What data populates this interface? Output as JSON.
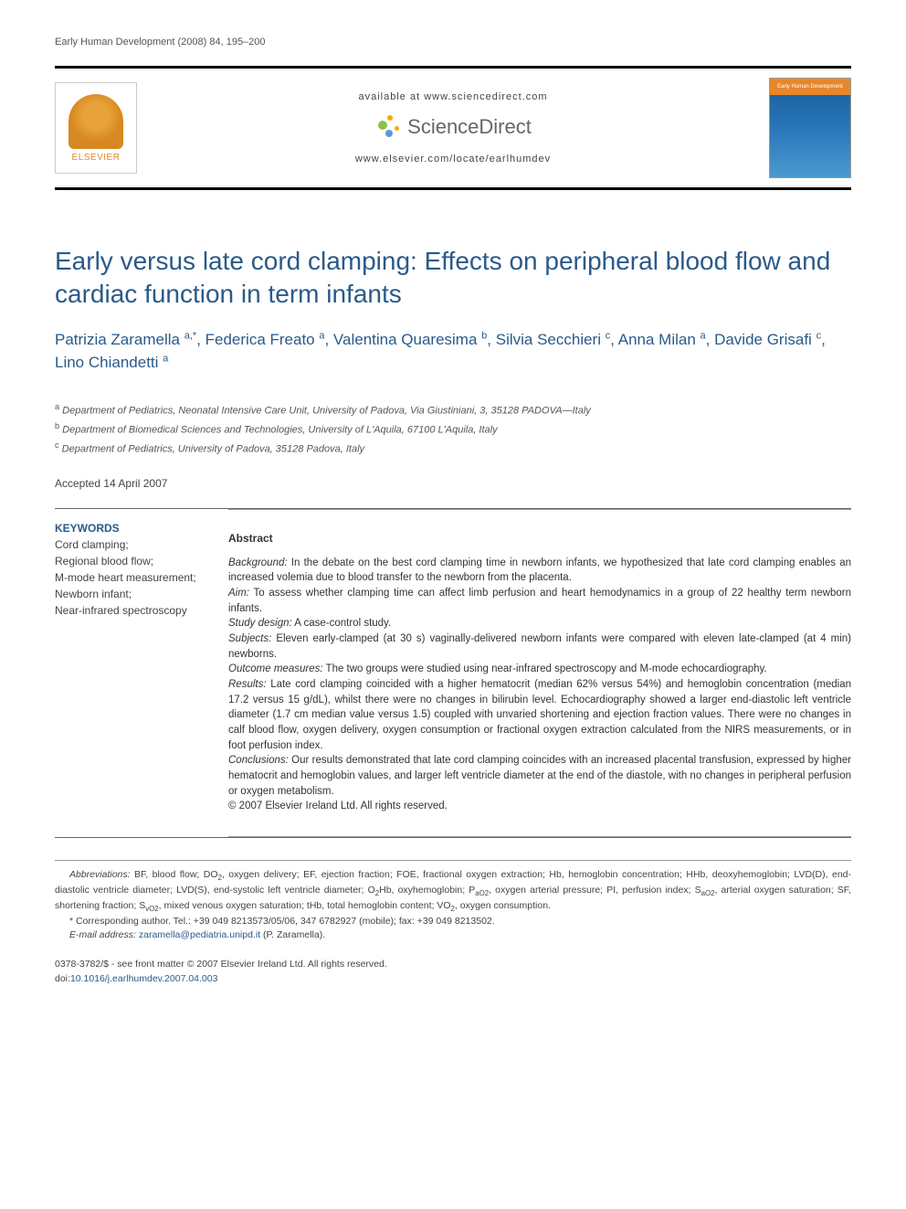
{
  "running_header": "Early Human Development (2008) 84, 195–200",
  "banner": {
    "available_at": "available at www.sciencedirect.com",
    "sciencedirect": "ScienceDirect",
    "locate": "www.elsevier.com/locate/earlhumdev",
    "elsevier_label": "ELSEVIER",
    "journal_cover_label": "Early Human Development"
  },
  "title": "Early versus late cord clamping: Effects on peripheral blood flow and cardiac function in term infants",
  "authors_html": "Patrizia Zaramella <sup>a,*</sup>, Federica Freato <sup>a</sup>, Valentina Quaresima <sup>b</sup>, Silvia Secchieri <sup>c</sup>, Anna Milan <sup>a</sup>, Davide Grisafi <sup>c</sup>, Lino Chiandetti <sup>a</sup>",
  "affiliations": {
    "a": "Department of Pediatrics, Neonatal Intensive Care Unit, University of Padova, Via Giustiniani, 3, 35128 PADOVA—Italy",
    "b": "Department of Biomedical Sciences and Technologies, University of L'Aquila, 67100 L'Aquila, Italy",
    "c": "Department of Pediatrics, University of Padova, 35128 Padova, Italy"
  },
  "accepted": "Accepted 14 April 2007",
  "keywords": {
    "heading": "KEYWORDS",
    "items": [
      "Cord clamping;",
      "Regional blood flow;",
      "M-mode heart measurement;",
      "Newborn infant;",
      "Near-infrared spectroscopy"
    ]
  },
  "abstract": {
    "heading": "Abstract",
    "background_label": "Background:",
    "background": "In the debate on the best cord clamping time in newborn infants, we hypothesized that late cord clamping enables an increased volemia due to blood transfer to the newborn from the placenta.",
    "aim_label": "Aim:",
    "aim": "To assess whether clamping time can affect limb perfusion and heart hemodynamics in a group of 22 healthy term newborn infants.",
    "design_label": "Study design:",
    "design": "A case-control study.",
    "subjects_label": "Subjects:",
    "subjects": "Eleven early-clamped (at 30 s) vaginally-delivered newborn infants were compared with eleven late-clamped (at 4 min) newborns.",
    "outcome_label": "Outcome measures:",
    "outcome": "The two groups were studied using near-infrared spectroscopy and M-mode echocardiography.",
    "results_label": "Results:",
    "results": "Late cord clamping coincided with a higher hematocrit (median 62% versus 54%) and hemoglobin concentration (median 17.2 versus 15 g/dL), whilst there were no changes in bilirubin level. Echocardiography showed a larger end-diastolic left ventricle diameter (1.7 cm median value versus 1.5) coupled with unvaried shortening and ejection fraction values. There were no changes in calf blood flow, oxygen delivery, oxygen consumption or fractional oxygen extraction calculated from the NIRS measurements, or in foot perfusion index.",
    "conclusions_label": "Conclusions:",
    "conclusions": "Our results demonstrated that late cord clamping coincides with an increased placental transfusion, expressed by higher hematocrit and hemoglobin values, and larger left ventricle diameter at the end of the diastole, with no changes in peripheral perfusion or oxygen metabolism.",
    "copyright": "© 2007 Elsevier Ireland Ltd. All rights reserved."
  },
  "footnotes": {
    "abbreviations_label": "Abbreviations:",
    "abbreviations": "BF, blood flow; DO₂, oxygen delivery; EF, ejection fraction; FOE, fractional oxygen extraction; Hb, hemoglobin concentration; HHb, deoxyhemoglobin; LVD(D), end-diastolic ventricle diameter; LVD(S), end-systolic left ventricle diameter; O₂Hb, oxyhemoglobin; PaO2, oxygen arterial pressure; PI, perfusion index; SaO2, arterial oxygen saturation; SF, shortening fraction; SvO2, mixed venous oxygen saturation; tHb, total hemoglobin content; VO₂, oxygen consumption.",
    "corresponding": "* Corresponding author. Tel.: +39 049 8213573/05/06, 347 6782927 (mobile); fax: +39 049 8213502.",
    "email_label": "E-mail address:",
    "email": "zaramella@pediatria.unipd.it",
    "email_author": "(P. Zaramella)."
  },
  "footer": {
    "issn": "0378-3782/$ - see front matter © 2007 Elsevier Ireland Ltd. All rights reserved.",
    "doi_label": "doi:",
    "doi": "10.1016/j.earlhumdev.2007.04.003"
  },
  "colors": {
    "heading_blue": "#2a5a8a",
    "elsevier_orange": "#e8862a",
    "text": "#333333",
    "text_muted": "#555555",
    "rule": "#666666"
  },
  "typography": {
    "title_fontsize": 28,
    "authors_fontsize": 17,
    "body_fontsize": 11.5,
    "footnote_fontsize": 10.5
  }
}
